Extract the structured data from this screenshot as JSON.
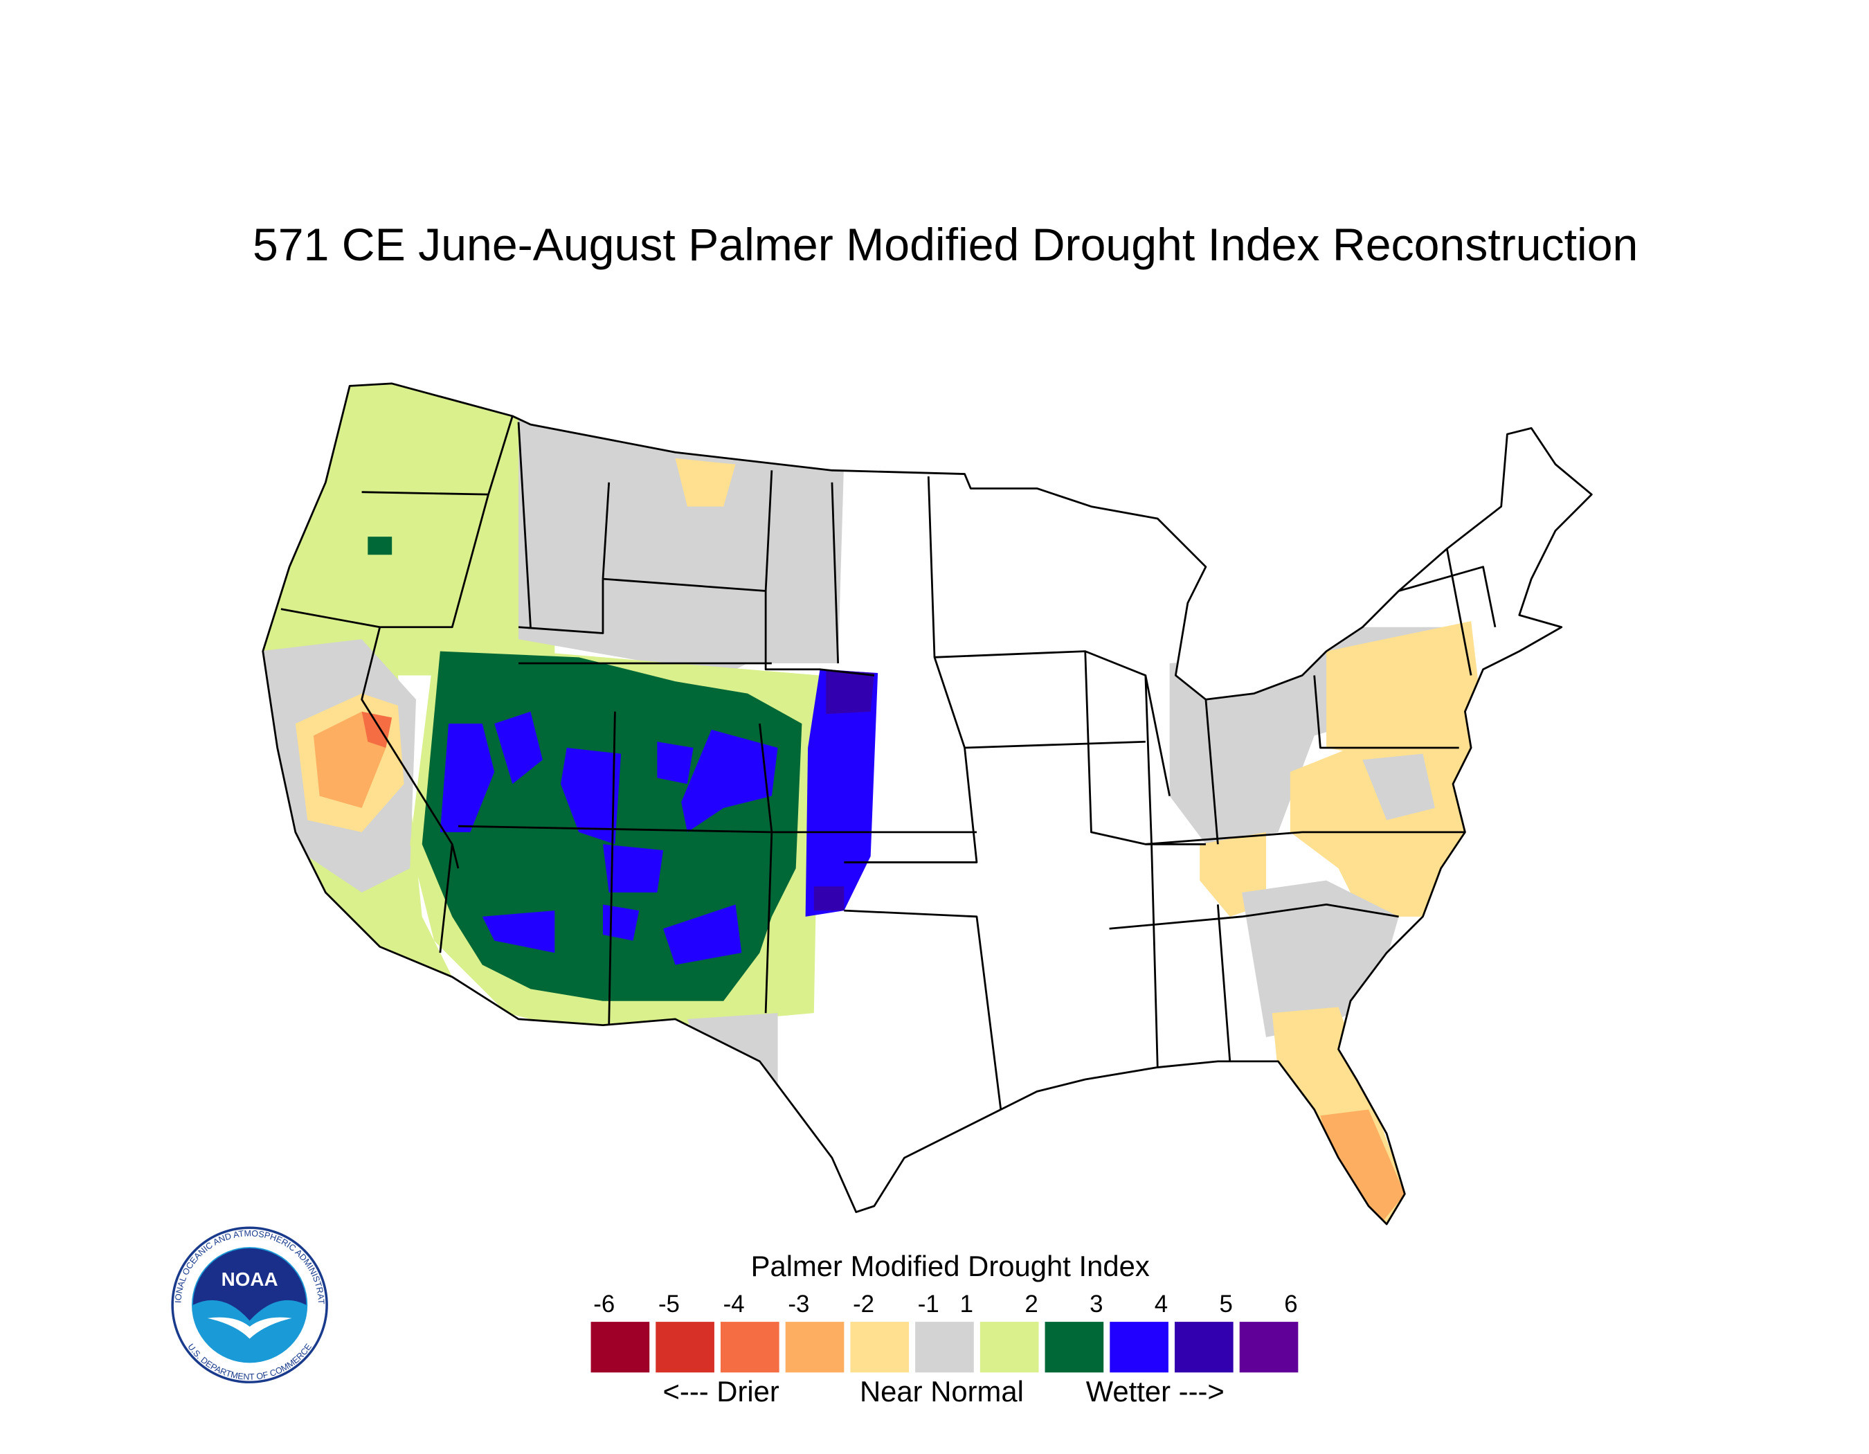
{
  "title": "571 CE  June-August  Palmer Modified Drought Index Reconstruction",
  "legend": {
    "title": "Palmer Modified Drought Index",
    "ticks": [
      -6,
      -5,
      -4,
      -3,
      -2,
      -1,
      1,
      2,
      3,
      4,
      5,
      6
    ],
    "colors": [
      "#9e0028",
      "#d73027",
      "#f46d43",
      "#fdae61",
      "#fee090",
      "#d3d3d3",
      "#d9f08c",
      "#006837",
      "#2200ff",
      "#3300b0",
      "#600099"
    ],
    "descriptors": [
      "<--- Drier",
      "Near Normal",
      "Wetter --->"
    ]
  },
  "logo": {
    "text": "NOAA",
    "ring_top": "NATIONAL OCEANIC AND ATMOSPHERIC ADMINISTRATION",
    "ring_bottom": "U.S. DEPARTMENT OF COMMERCE"
  }
}
